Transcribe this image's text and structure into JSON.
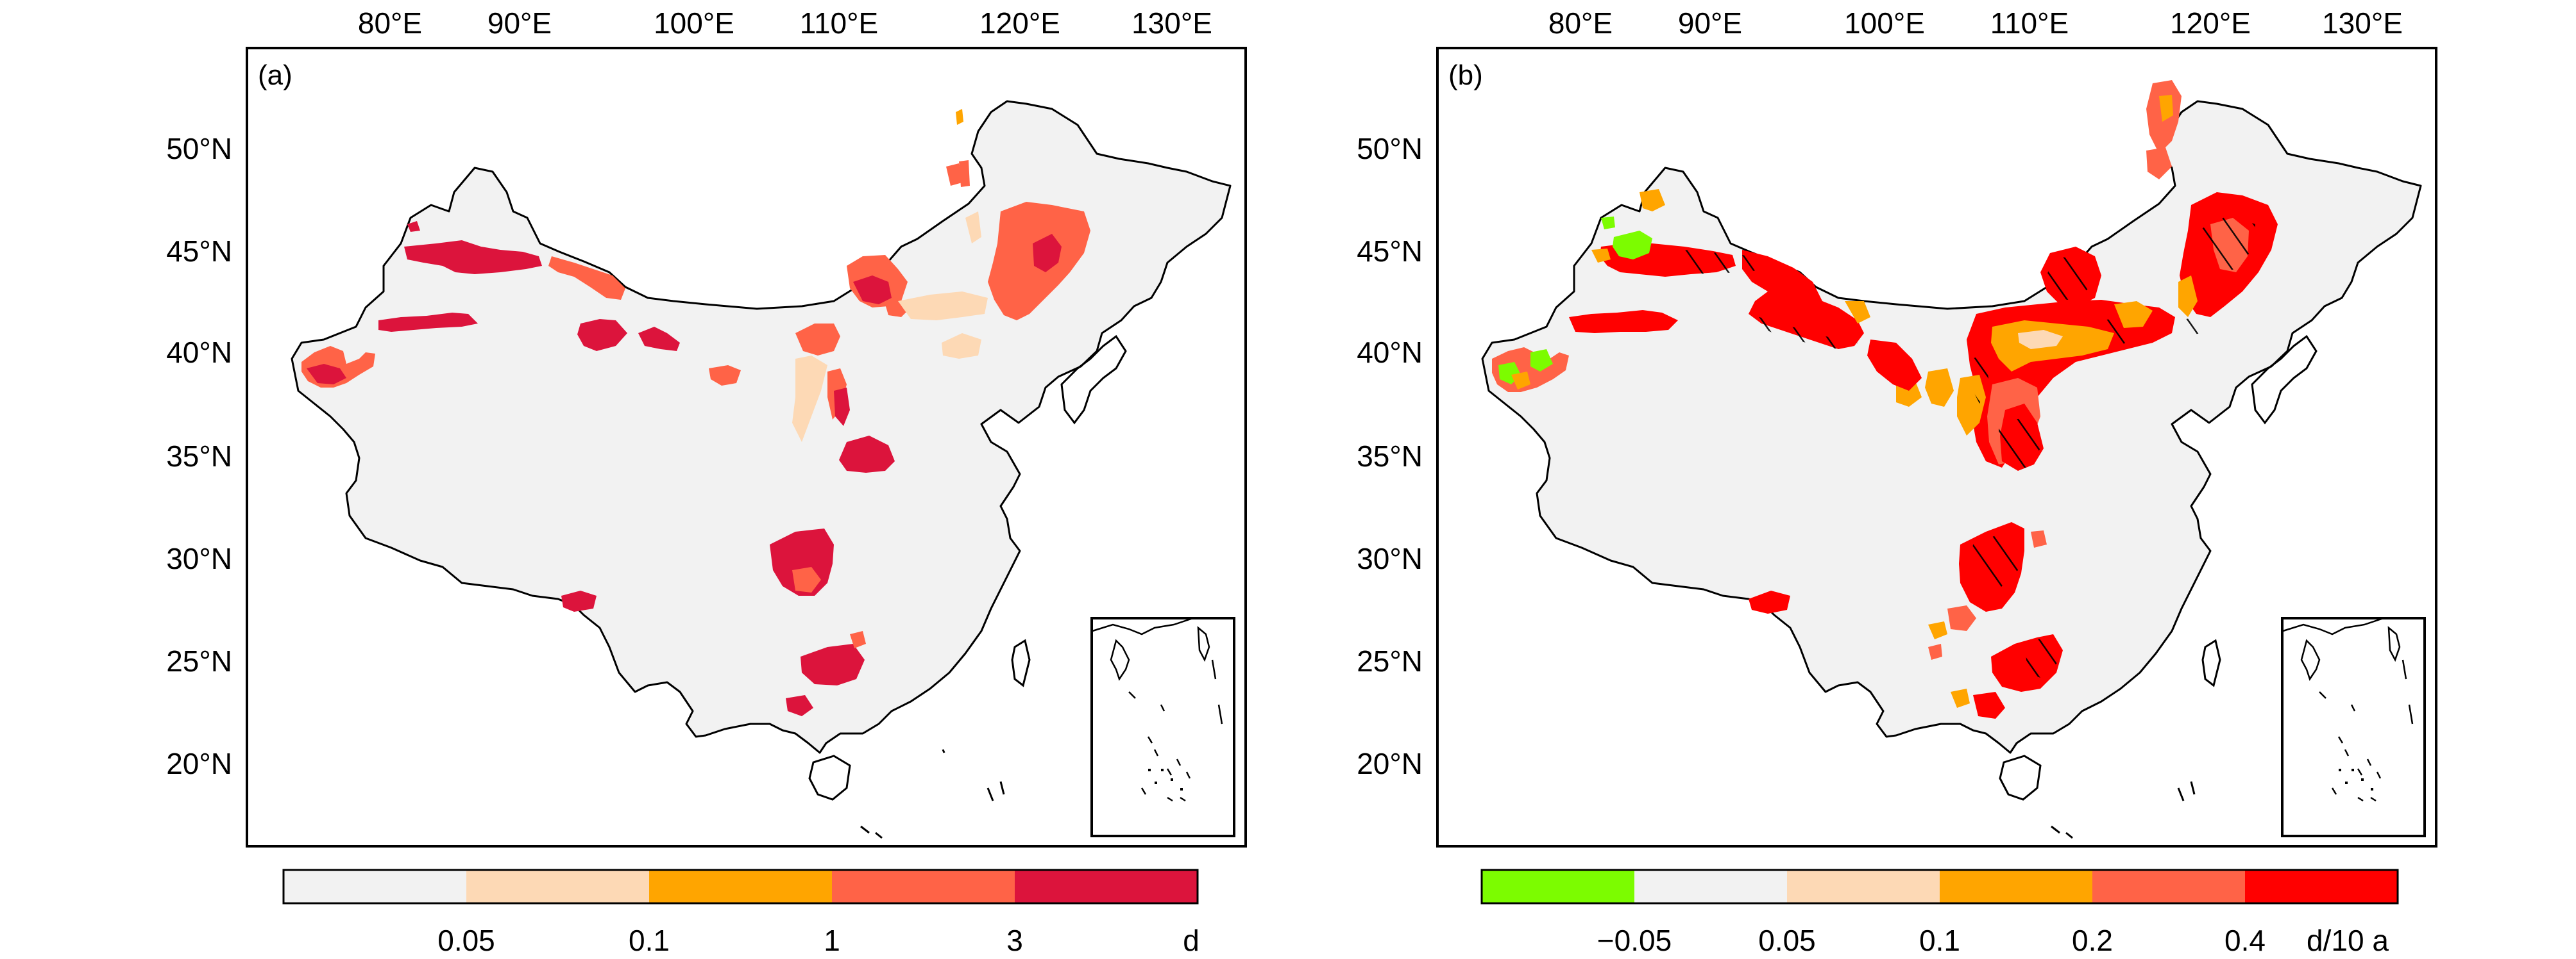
{
  "panels": [
    {
      "letter": "(a)",
      "lon_labels": [
        "80°E",
        "90°E",
        "100°E",
        "110°E",
        "120°E",
        "130°E"
      ],
      "lat_labels": [
        "50°N",
        "45°N",
        "40°N",
        "35°N",
        "30°N",
        "25°N",
        "20°N"
      ],
      "colorbar": {
        "colors": [
          "#f2f2f2",
          "#fdd9b5",
          "#ffa500",
          "#ff6347",
          "#dc143c"
        ],
        "tick_labels": [
          "0.05",
          "0.1",
          "1",
          "3"
        ],
        "unit": "d"
      }
    },
    {
      "letter": "(b)",
      "lon_labels": [
        "80°E",
        "90°E",
        "100°E",
        "110°E",
        "120°E",
        "130°E"
      ],
      "lat_labels": [
        "50°N",
        "45°N",
        "40°N",
        "35°N",
        "30°N",
        "25°N",
        "20°N"
      ],
      "colorbar": {
        "colors": [
          "#7cfc00",
          "#f2f2f2",
          "#fdd9b5",
          "#ffa500",
          "#ff6347",
          "#ff0000"
        ],
        "tick_labels": [
          "−0.05",
          "0.05",
          "0.1",
          "0.2",
          "0.4"
        ],
        "unit": "d/10 a"
      }
    }
  ]
}
